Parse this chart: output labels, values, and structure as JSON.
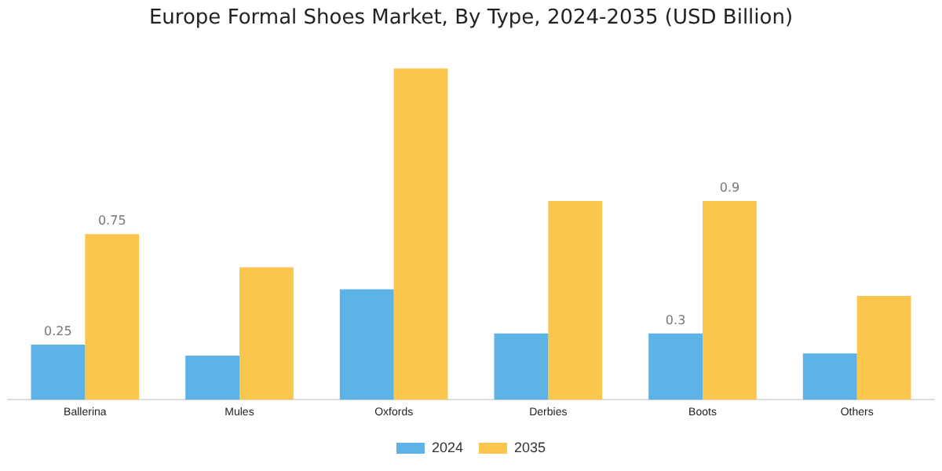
{
  "chart_data": {
    "type": "bar",
    "title": "Europe Formal Shoes Market, By Type, 2024-2035 (USD Billion)",
    "categories": [
      "Ballerina",
      "Mules",
      "Oxfords",
      "Derbies",
      "Boots",
      "Others"
    ],
    "series": [
      {
        "name": "2024",
        "color": "#5db3e6",
        "values": [
          0.25,
          0.2,
          0.5,
          0.3,
          0.3,
          0.21
        ],
        "value_labels": [
          "0.25",
          null,
          null,
          null,
          "0.3",
          null
        ]
      },
      {
        "name": "2035",
        "color": "#fbc64d",
        "values": [
          0.75,
          0.6,
          1.5,
          0.9,
          0.9,
          0.47
        ],
        "value_labels": [
          "0.75",
          null,
          null,
          null,
          "0.9",
          null
        ]
      }
    ],
    "grid": false,
    "legend": "bottom"
  }
}
